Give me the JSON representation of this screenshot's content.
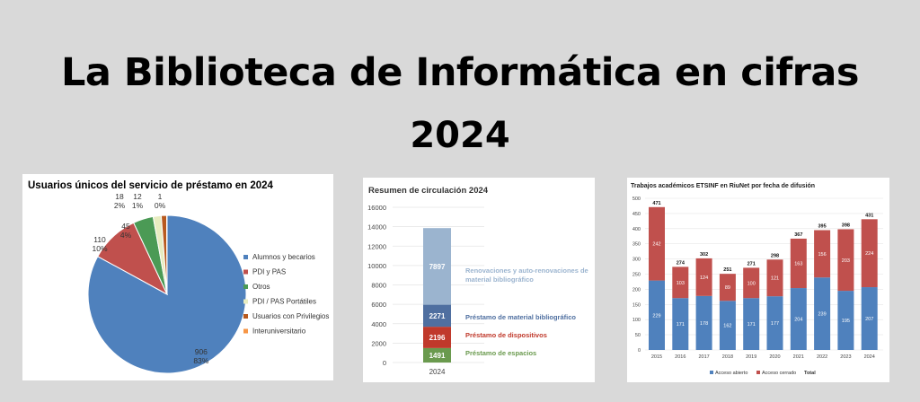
{
  "page": {
    "title_line1": "La Biblioteca de Informática en cifras",
    "title_line2": "2024"
  },
  "chart_data": [
    {
      "type": "pie",
      "title": "Usuarios únicos del servicio de préstamo en 2024",
      "legend_position": "right",
      "slices": [
        {
          "label": "Alumnos y becarios",
          "value": 906,
          "pct": "83%",
          "color": "#4f81bd"
        },
        {
          "label": "PDI y PAS",
          "value": 110,
          "pct": "10%",
          "color": "#c0504d"
        },
        {
          "label": "Otros",
          "value": 45,
          "pct": "4%",
          "color": "#4b9a55"
        },
        {
          "label": "PDI / PAS Portátiles",
          "value": 18,
          "pct": "2%",
          "color": "#e8ecc0"
        },
        {
          "label": "Usuarios con Privilegios",
          "value": 12,
          "pct": "1%",
          "color": "#b85a1f"
        },
        {
          "label": "Interuniversitario",
          "value": 1,
          "pct": "0%",
          "color": "#f79646"
        }
      ]
    },
    {
      "type": "bar",
      "stacked": true,
      "title": "Resumen de circulación 2024",
      "categories": [
        "2024"
      ],
      "ylim": [
        0,
        16000
      ],
      "yticks": [
        0,
        2000,
        4000,
        6000,
        8000,
        10000,
        12000,
        14000,
        16000
      ],
      "series": [
        {
          "name": "Préstamo de espacios",
          "values": [
            1491
          ],
          "color": "#6a9a4e"
        },
        {
          "name": "Préstamo de dispositivos",
          "values": [
            2196
          ],
          "color": "#c0392b"
        },
        {
          "name": "Préstamo de material bibliográfico",
          "values": [
            2271
          ],
          "color": "#4f6fa0"
        },
        {
          "name": "Renovaciones y auto-renovaciones de material bibliográfico",
          "values": [
            7897
          ],
          "color": "#9bb4cf"
        }
      ]
    },
    {
      "type": "bar",
      "stacked": true,
      "title": "Trabajos académicos ETSINF en RiuNet por fecha de difusión",
      "categories": [
        "2015",
        "2016",
        "2017",
        "2018",
        "2019",
        "2020",
        "2021",
        "2022",
        "2023",
        "2024"
      ],
      "ylim": [
        0,
        500
      ],
      "yticks": [
        0,
        50,
        100,
        150,
        200,
        250,
        300,
        350,
        400,
        450,
        500
      ],
      "legend_position": "bottom",
      "total_label": "Total",
      "series": [
        {
          "name": "Acceso abierto",
          "values": [
            229,
            171,
            178,
            162,
            171,
            177,
            204,
            239,
            195,
            207
          ],
          "color": "#4f81bd"
        },
        {
          "name": "Acceso cerrado",
          "values": [
            242,
            103,
            124,
            89,
            100,
            121,
            163,
            156,
            203,
            224
          ],
          "color": "#c0504d"
        }
      ],
      "totals": [
        471,
        274,
        302,
        251,
        271,
        298,
        367,
        395,
        398,
        431
      ]
    }
  ]
}
